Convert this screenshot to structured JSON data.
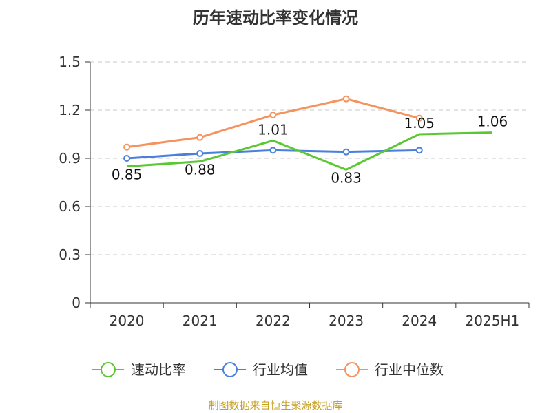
{
  "chart_data": {
    "type": "line",
    "title": "历年速动比率变化情况",
    "categories": [
      "2020",
      "2021",
      "2022",
      "2023",
      "2024",
      "2025H1"
    ],
    "ylim": [
      0,
      1.5
    ],
    "yticks": [
      "0",
      "0.3",
      "0.6",
      "0.9",
      "1.2",
      "1.5"
    ],
    "grid": true,
    "legend_position": "bottom",
    "series": [
      {
        "name": "速动比率",
        "color": "#5ac832",
        "values": [
          0.85,
          0.88,
          1.01,
          0.83,
          1.05,
          1.06
        ],
        "labels": [
          "0.85",
          "0.88",
          "1.01",
          "0.83",
          "1.05",
          "1.06"
        ]
      },
      {
        "name": "行业均值",
        "color": "#4a7fdc",
        "values": [
          0.9,
          0.93,
          0.95,
          0.94,
          0.95,
          null
        ]
      },
      {
        "name": "行业中位数",
        "color": "#f5925e",
        "values": [
          0.97,
          1.03,
          1.17,
          1.27,
          1.15,
          null
        ]
      }
    ]
  },
  "source": "制图数据来自恒生聚源数据库"
}
